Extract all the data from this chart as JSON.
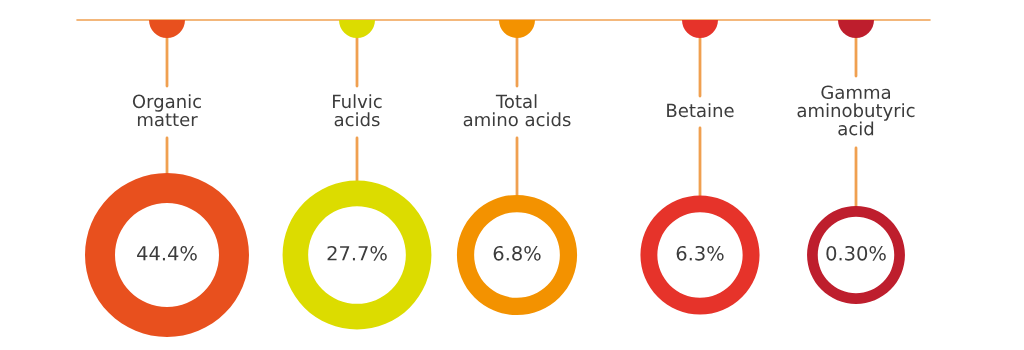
{
  "chart_data": {
    "type": "other",
    "categories": [
      "Organic\nmatter",
      "Fulvic\nacids",
      "Total\namino acids",
      "Betaine",
      "Gamma\naminobutyric\nacid"
    ],
    "values": [
      44.4,
      27.7,
      6.8,
      6.3,
      0.3
    ],
    "value_labels": [
      "44.4%",
      "27.7%",
      "6.8%",
      "6.3%",
      "0.30%"
    ],
    "colors": [
      "#e8501e",
      "#dcdc00",
      "#f39200",
      "#e6332a",
      "#be1e2d"
    ]
  }
}
